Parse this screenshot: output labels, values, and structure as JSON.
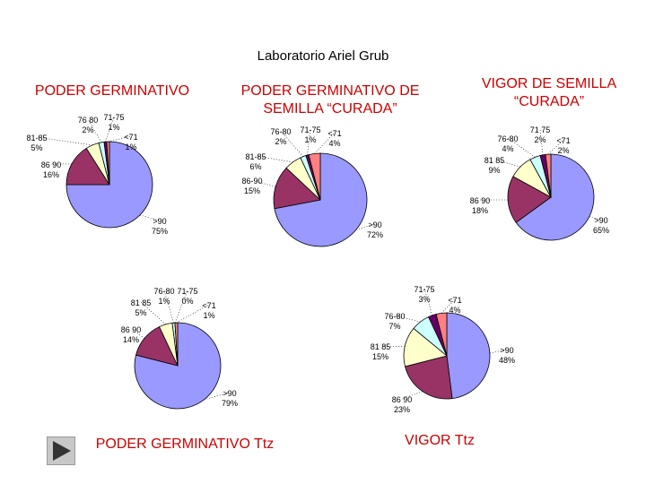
{
  "header": {
    "title": "Laboratorio Ariel Grub"
  },
  "colors": {
    "gt90": "#9999ff",
    "r86_90": "#993366",
    "r81_85": "#ffffcc",
    "r76_80": "#ccffff",
    "r71_75": "#660066",
    "lt71": "#ff8080"
  },
  "nav": {
    "icon": "play-triangle-icon"
  },
  "chart_data": [
    {
      "type": "pie",
      "title": "PODER GERMINATIVO",
      "categories": [
        ">90",
        "86 90",
        "81-85",
        "76 80",
        "71-75",
        "<71"
      ],
      "values": [
        75,
        16,
        5,
        2,
        1,
        1
      ],
      "labels": [
        ">90\n75%",
        "86 90\n16%",
        "81-85\n5%",
        "76 80\n2%",
        "71-75\n1%",
        "<71\n1%"
      ]
    },
    {
      "type": "pie",
      "title": "PODER GERMINATIVO DE SEMILLA “CURADA”",
      "categories": [
        ">90",
        "86-90",
        "81-85",
        "76-80",
        "71-75",
        "<71"
      ],
      "values": [
        72,
        15,
        6,
        2,
        1,
        4
      ],
      "labels": [
        ">90\n72%",
        "86-90\n15%",
        "81-85\n6%",
        "76-80\n2%",
        "71-75\n1%",
        "<71\n4%"
      ]
    },
    {
      "type": "pie",
      "title": "VIGOR DE SEMILLA “CURADA”",
      "categories": [
        ">90",
        "86 90",
        "81 85",
        "76-80",
        "71 75",
        "<71"
      ],
      "values": [
        65,
        18,
        9,
        4,
        2,
        2
      ],
      "labels": [
        ">90\n65%",
        "86 90\n18%",
        "81 85\n9%",
        "76-80\n4%",
        "71 75\n2%",
        "<71\n2%"
      ]
    },
    {
      "type": "pie",
      "title": "PODER GERMINATIVO Ttz",
      "categories": [
        ">90",
        "86 90",
        "81 85",
        "76-80",
        "71-75",
        "<71"
      ],
      "values": [
        79,
        14,
        5,
        1,
        0,
        1
      ],
      "labels": [
        ">90\n79%",
        "86 90\n14%",
        "81 85\n5%",
        "76-80\n1%",
        "71-75\n0%",
        "<71\n1%"
      ]
    },
    {
      "type": "pie",
      "title": "VIGOR Ttz",
      "categories": [
        ">90",
        "86 90",
        "81 85",
        "76-80",
        "71-75",
        "<71"
      ],
      "values": [
        48,
        23,
        15,
        7,
        3,
        4
      ],
      "labels": [
        ">90\n48%",
        "86 90\n23%",
        "81 85\n15%",
        "76-80\n7%",
        "71-75\n3%",
        "<71\n4%"
      ]
    }
  ]
}
